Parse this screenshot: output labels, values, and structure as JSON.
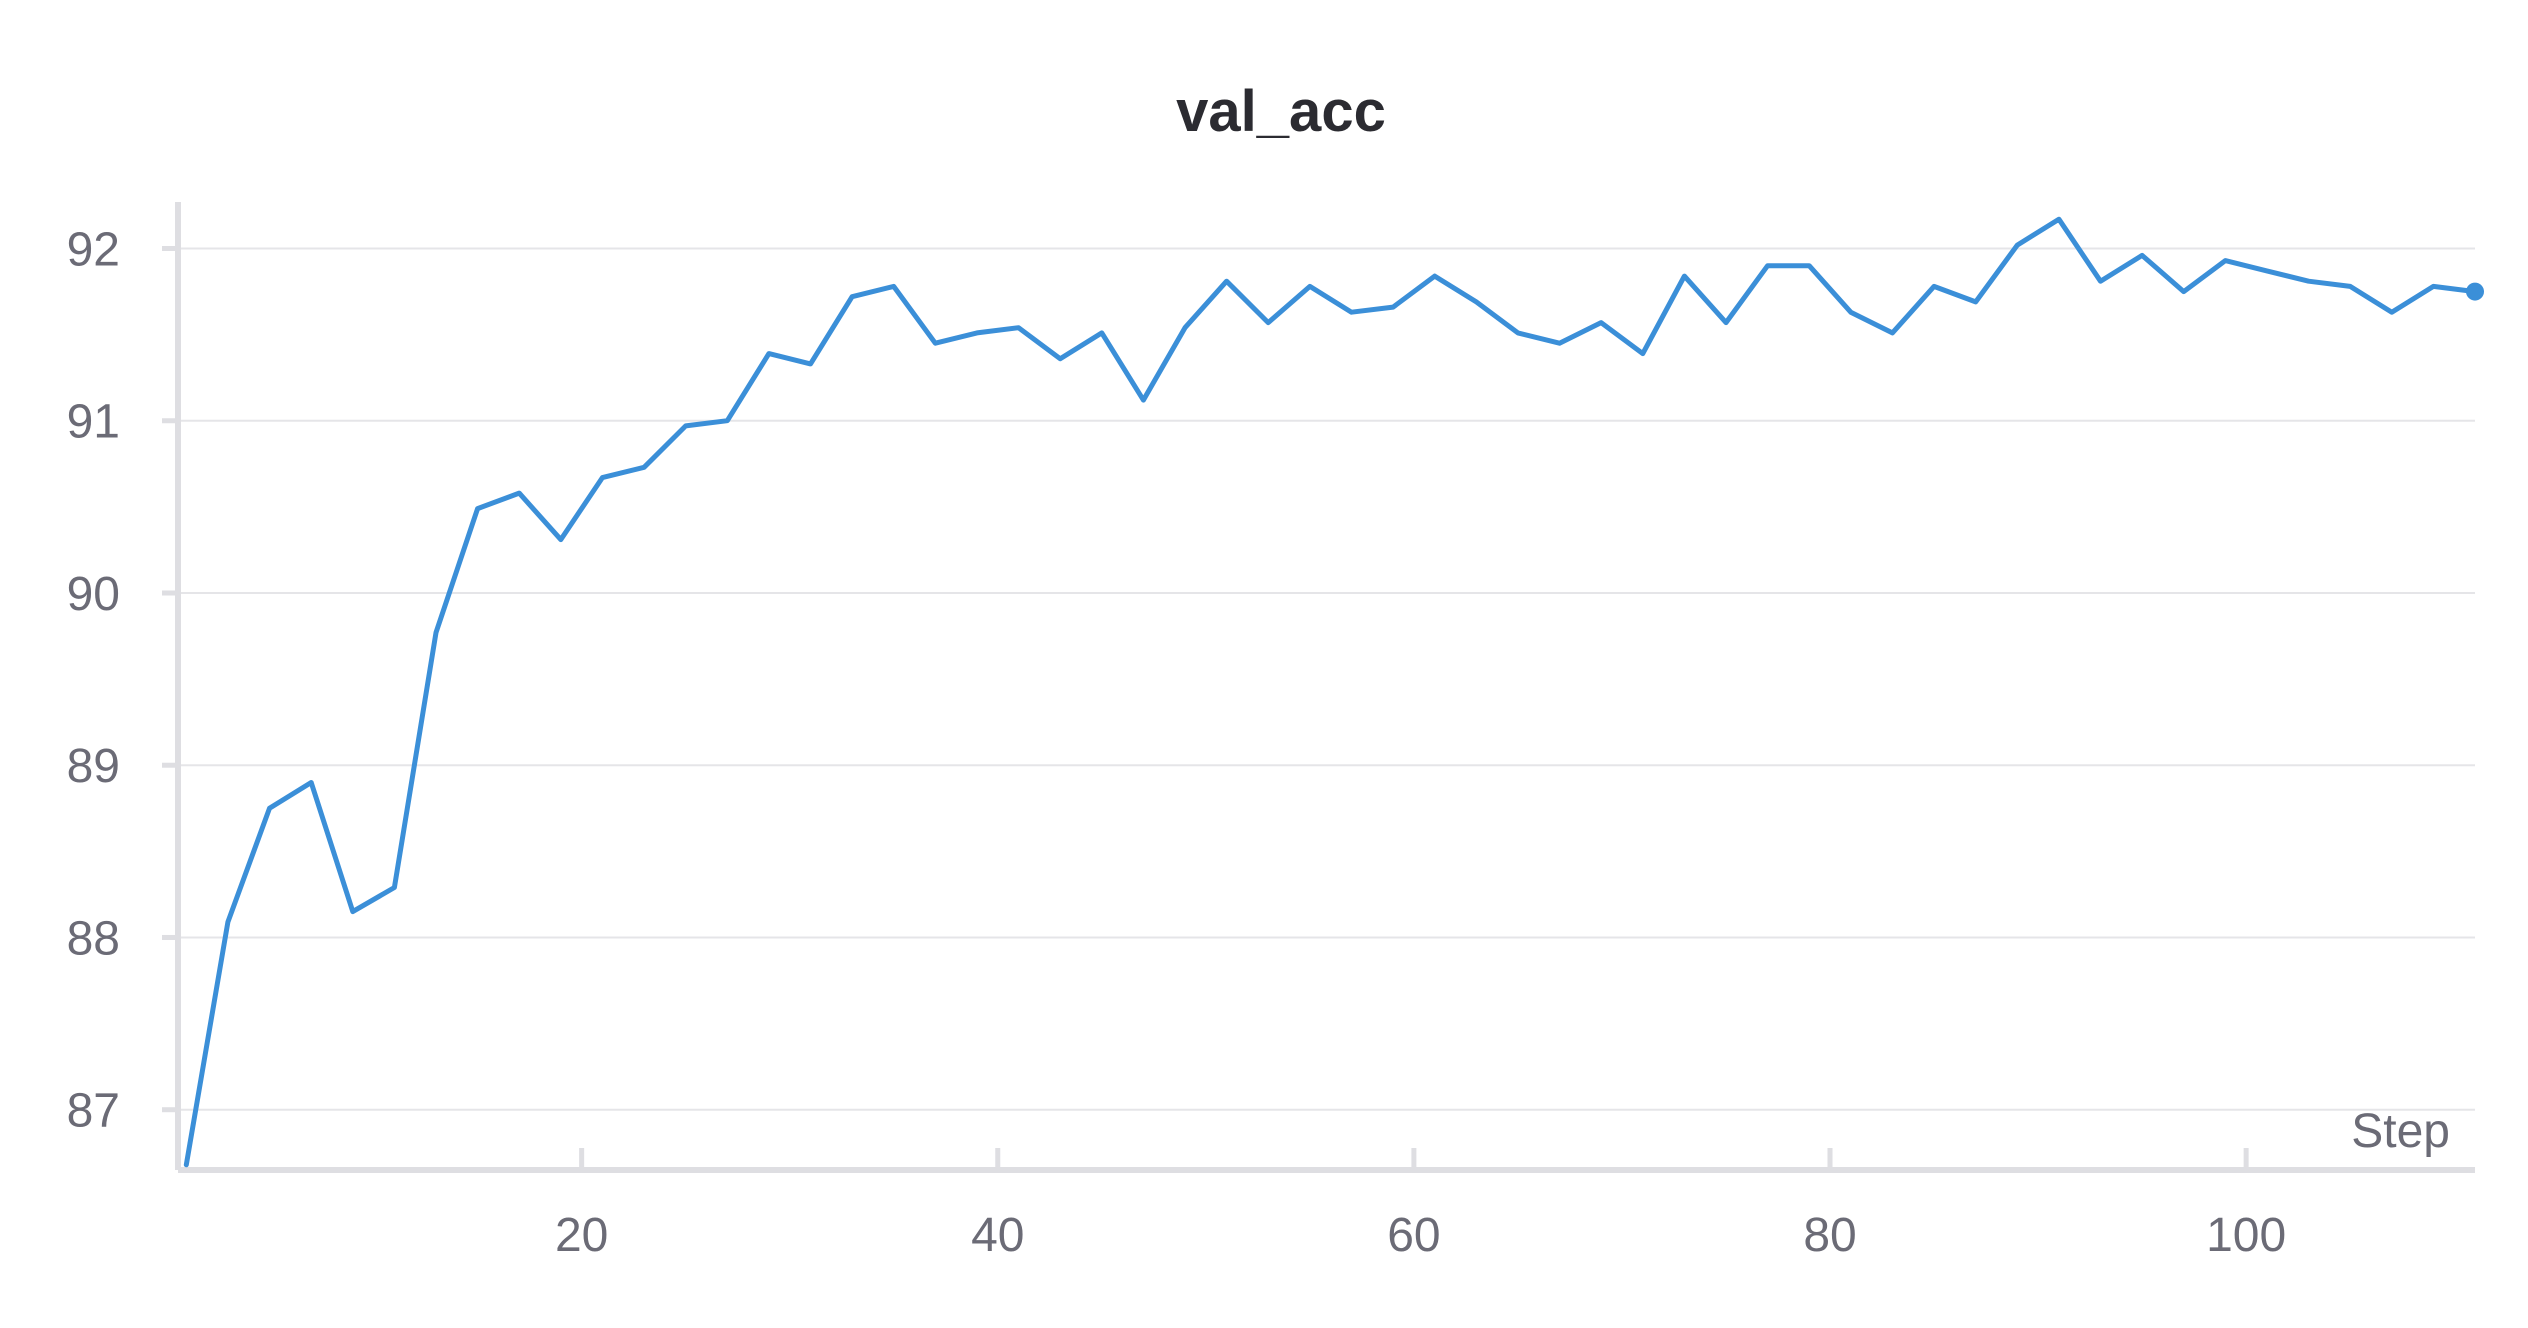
{
  "chart_data": {
    "type": "line",
    "title": "val_acc",
    "xlabel": "Step",
    "ylabel": "",
    "xlim": [
      0.6,
      111
    ],
    "ylim": [
      86.65,
      92.27
    ],
    "x_ticks": [
      20,
      40,
      60,
      80,
      100
    ],
    "y_ticks": [
      87,
      88,
      89,
      90,
      91,
      92
    ],
    "grid": true,
    "legend": "none",
    "colors": {
      "series": "#3b8fd8",
      "grid": "#e5e5e8",
      "axis": "#dedee2",
      "tick_label": "#6b6b76",
      "title": "#2b2b31"
    },
    "series": [
      {
        "x": [
          1,
          3,
          5,
          7,
          9,
          11,
          13,
          15,
          17,
          19,
          21,
          23,
          25,
          27,
          29,
          31,
          33,
          35,
          37,
          39,
          41,
          43,
          45,
          47,
          49,
          51,
          53,
          55,
          57,
          59,
          61,
          63,
          65,
          67,
          69,
          71,
          73,
          75,
          77,
          79,
          81,
          83,
          85,
          87,
          89,
          91,
          93,
          95,
          97,
          99,
          101,
          103,
          105,
          107,
          109,
          111
        ],
        "values": [
          86.68,
          88.09,
          88.75,
          88.9,
          88.15,
          88.29,
          89.77,
          90.49,
          90.58,
          90.31,
          90.67,
          90.73,
          90.97,
          91.0,
          91.39,
          91.33,
          91.72,
          91.78,
          91.45,
          91.51,
          91.54,
          91.36,
          91.51,
          91.12,
          91.54,
          91.81,
          91.57,
          91.78,
          91.63,
          91.66,
          91.84,
          91.69,
          91.51,
          91.45,
          91.57,
          91.39,
          91.84,
          91.57,
          91.9,
          91.9,
          91.63,
          91.51,
          91.78,
          91.69,
          92.02,
          92.17,
          91.81,
          91.96,
          91.75,
          91.93,
          91.87,
          91.81,
          91.78,
          91.63,
          91.78,
          91.75
        ]
      }
    ]
  }
}
